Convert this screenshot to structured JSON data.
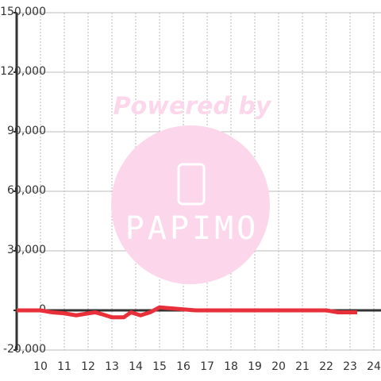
{
  "chart_data": {
    "type": "line",
    "watermark": {
      "line1": "Powered by",
      "line2": "PAPIMO"
    },
    "x": [
      9,
      10,
      10.5,
      11,
      11.5,
      12,
      12.3,
      12.6,
      13,
      13.5,
      13.8,
      14.2,
      14.6,
      15,
      15.5,
      16,
      16.5,
      17,
      18,
      19,
      20,
      21,
      22,
      22.5,
      23,
      23.3
    ],
    "series": [
      {
        "color": "#e8303a",
        "values": [
          0,
          0,
          -1000,
          -1500,
          -2500,
          -1500,
          -1000,
          -2000,
          -3500,
          -3500,
          -1000,
          -2500,
          -1000,
          1500,
          1000,
          500,
          0,
          0,
          0,
          0,
          0,
          0,
          0,
          -1000,
          -1000,
          -1000
        ]
      }
    ],
    "xlim": [
      9,
      24.3
    ],
    "xticks": [
      10,
      11,
      12,
      13,
      14,
      15,
      16,
      17,
      18,
      19,
      20,
      21,
      22,
      23,
      24
    ],
    "ylim": [
      -20000,
      150000
    ],
    "yticks": [
      {
        "value": -20000,
        "label": "-20,000"
      },
      0,
      {
        "value": 30000,
        "label": "30,000"
      },
      {
        "value": 60000,
        "label": "60,000"
      },
      {
        "value": 90000,
        "label": "90,000"
      },
      {
        "value": 120000,
        "label": "120,000"
      },
      {
        "value": 150000,
        "label": "150,000"
      }
    ],
    "grid": true
  }
}
